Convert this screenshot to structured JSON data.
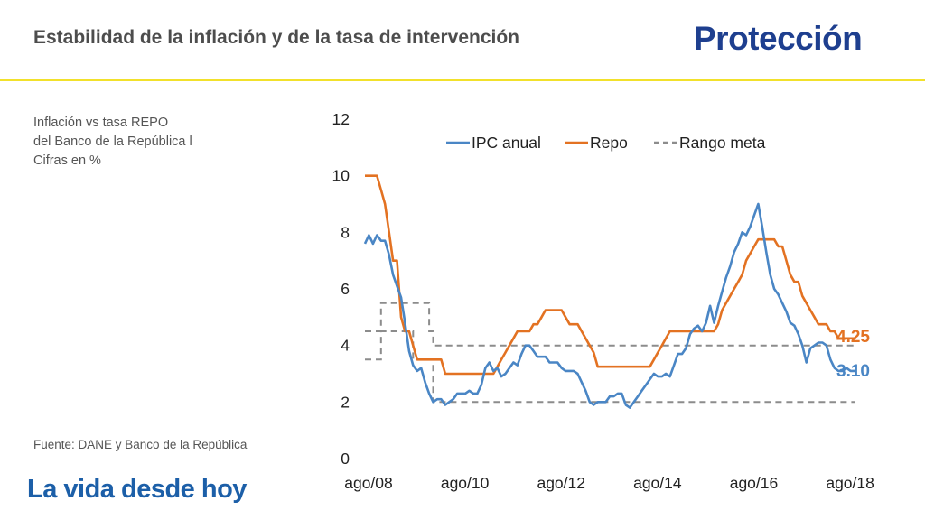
{
  "header": {
    "title": "Estabilidad de la inflación y de la tasa de intervención",
    "logo_text": "Protección"
  },
  "subtitle": "Inflación vs tasa REPO\ndel Banco de la República l\nCifras en %",
  "source": "Fuente: DANE y Banco de la República",
  "tagline": "La vida desde hoy",
  "colors": {
    "ipc": "#4a86c5",
    "repo": "#e37222",
    "rango": "#8c8c8c",
    "accent_yellow": "#f2e12b",
    "brand_blue": "#1e3f8f",
    "tagline_blue": "#1c5fa8"
  },
  "chart_data": {
    "type": "line",
    "x_unit": "months since ago/08",
    "x_ticks": [
      "ago/08",
      "ago/10",
      "ago/12",
      "ago/14",
      "ago/16",
      "ago/18"
    ],
    "ylim": [
      0,
      12
    ],
    "y_ticks": [
      "0",
      "2",
      "4",
      "6",
      "8",
      "10",
      "12"
    ],
    "legend_position": "top",
    "grid": false,
    "series": [
      {
        "name": "IPC anual",
        "style": "solid",
        "points": [
          [
            0,
            7.6
          ],
          [
            1,
            7.9
          ],
          [
            2,
            7.6
          ],
          [
            3,
            7.9
          ],
          [
            4,
            7.7
          ],
          [
            5,
            7.7
          ],
          [
            6,
            7.2
          ],
          [
            7,
            6.5
          ],
          [
            8,
            6.1
          ],
          [
            9,
            5.7
          ],
          [
            10,
            4.8
          ],
          [
            11,
            3.8
          ],
          [
            12,
            3.3
          ],
          [
            13,
            3.1
          ],
          [
            14,
            3.2
          ],
          [
            15,
            2.7
          ],
          [
            16,
            2.3
          ],
          [
            17,
            2.0
          ],
          [
            18,
            2.1
          ],
          [
            19,
            2.1
          ],
          [
            20,
            1.9
          ],
          [
            21,
            2.0
          ],
          [
            22,
            2.1
          ],
          [
            23,
            2.3
          ],
          [
            24,
            2.3
          ],
          [
            25,
            2.3
          ],
          [
            26,
            2.4
          ],
          [
            27,
            2.3
          ],
          [
            28,
            2.3
          ],
          [
            29,
            2.6
          ],
          [
            30,
            3.2
          ],
          [
            31,
            3.4
          ],
          [
            32,
            3.1
          ],
          [
            33,
            3.2
          ],
          [
            34,
            2.9
          ],
          [
            35,
            3.0
          ],
          [
            36,
            3.2
          ],
          [
            37,
            3.4
          ],
          [
            38,
            3.3
          ],
          [
            39,
            3.7
          ],
          [
            40,
            4.0
          ],
          [
            41,
            4.0
          ],
          [
            42,
            3.8
          ],
          [
            43,
            3.6
          ],
          [
            44,
            3.6
          ],
          [
            45,
            3.6
          ],
          [
            46,
            3.4
          ],
          [
            47,
            3.4
          ],
          [
            48,
            3.4
          ],
          [
            49,
            3.2
          ],
          [
            50,
            3.1
          ],
          [
            51,
            3.1
          ],
          [
            52,
            3.1
          ],
          [
            53,
            3.0
          ],
          [
            54,
            2.7
          ],
          [
            55,
            2.4
          ],
          [
            56,
            2.0
          ],
          [
            57,
            1.9
          ],
          [
            58,
            2.0
          ],
          [
            59,
            2.0
          ],
          [
            60,
            2.0
          ],
          [
            61,
            2.2
          ],
          [
            62,
            2.2
          ],
          [
            63,
            2.3
          ],
          [
            64,
            2.3
          ],
          [
            65,
            1.9
          ],
          [
            66,
            1.8
          ],
          [
            67,
            2.0
          ],
          [
            68,
            2.2
          ],
          [
            69,
            2.4
          ],
          [
            70,
            2.6
          ],
          [
            71,
            2.8
          ],
          [
            72,
            3.0
          ],
          [
            73,
            2.9
          ],
          [
            74,
            2.9
          ],
          [
            75,
            3.0
          ],
          [
            76,
            2.9
          ],
          [
            77,
            3.3
          ],
          [
            78,
            3.7
          ],
          [
            79,
            3.7
          ],
          [
            80,
            3.9
          ],
          [
            81,
            4.4
          ],
          [
            82,
            4.6
          ],
          [
            83,
            4.7
          ],
          [
            84,
            4.5
          ],
          [
            85,
            4.8
          ],
          [
            86,
            5.4
          ],
          [
            87,
            4.8
          ],
          [
            88,
            5.4
          ],
          [
            89,
            5.9
          ],
          [
            90,
            6.4
          ],
          [
            91,
            6.8
          ],
          [
            92,
            7.3
          ],
          [
            93,
            7.6
          ],
          [
            94,
            8.0
          ],
          [
            95,
            7.9
          ],
          [
            96,
            8.2
          ],
          [
            97,
            8.6
          ],
          [
            98,
            9.0
          ],
          [
            99,
            8.2
          ],
          [
            100,
            7.3
          ],
          [
            101,
            6.5
          ],
          [
            102,
            6.0
          ],
          [
            103,
            5.8
          ],
          [
            104,
            5.5
          ],
          [
            105,
            5.2
          ],
          [
            106,
            4.8
          ],
          [
            107,
            4.7
          ],
          [
            108,
            4.4
          ],
          [
            109,
            4.0
          ],
          [
            110,
            3.4
          ],
          [
            111,
            3.9
          ],
          [
            112,
            4.0
          ],
          [
            113,
            4.1
          ],
          [
            114,
            4.1
          ],
          [
            115,
            4.0
          ],
          [
            116,
            3.5
          ],
          [
            117,
            3.2
          ],
          [
            118,
            3.1
          ],
          [
            119,
            3.1
          ],
          [
            120,
            3.2
          ],
          [
            121,
            3.1
          ],
          [
            122,
            3.1
          ]
        ]
      },
      {
        "name": "Repo",
        "style": "solid",
        "points": [
          [
            0,
            10.0
          ],
          [
            1,
            10.0
          ],
          [
            2,
            10.0
          ],
          [
            3,
            10.0
          ],
          [
            4,
            9.5
          ],
          [
            5,
            9.0
          ],
          [
            6,
            8.0
          ],
          [
            7,
            7.0
          ],
          [
            8,
            7.0
          ],
          [
            9,
            5.0
          ],
          [
            10,
            4.5
          ],
          [
            11,
            4.5
          ],
          [
            12,
            4.0
          ],
          [
            13,
            3.5
          ],
          [
            14,
            3.5
          ],
          [
            15,
            3.5
          ],
          [
            16,
            3.5
          ],
          [
            17,
            3.5
          ],
          [
            18,
            3.5
          ],
          [
            19,
            3.5
          ],
          [
            20,
            3.0
          ],
          [
            21,
            3.0
          ],
          [
            22,
            3.0
          ],
          [
            23,
            3.0
          ],
          [
            24,
            3.0
          ],
          [
            25,
            3.0
          ],
          [
            26,
            3.0
          ],
          [
            27,
            3.0
          ],
          [
            28,
            3.0
          ],
          [
            29,
            3.0
          ],
          [
            30,
            3.0
          ],
          [
            31,
            3.0
          ],
          [
            32,
            3.0
          ],
          [
            33,
            3.25
          ],
          [
            34,
            3.5
          ],
          [
            35,
            3.75
          ],
          [
            36,
            4.0
          ],
          [
            37,
            4.25
          ],
          [
            38,
            4.5
          ],
          [
            39,
            4.5
          ],
          [
            40,
            4.5
          ],
          [
            41,
            4.5
          ],
          [
            42,
            4.75
          ],
          [
            43,
            4.75
          ],
          [
            44,
            5.0
          ],
          [
            45,
            5.25
          ],
          [
            46,
            5.25
          ],
          [
            47,
            5.25
          ],
          [
            48,
            5.25
          ],
          [
            49,
            5.25
          ],
          [
            50,
            5.0
          ],
          [
            51,
            4.75
          ],
          [
            52,
            4.75
          ],
          [
            53,
            4.75
          ],
          [
            54,
            4.5
          ],
          [
            55,
            4.25
          ],
          [
            56,
            4.0
          ],
          [
            57,
            3.75
          ],
          [
            58,
            3.25
          ],
          [
            59,
            3.25
          ],
          [
            60,
            3.25
          ],
          [
            61,
            3.25
          ],
          [
            62,
            3.25
          ],
          [
            63,
            3.25
          ],
          [
            64,
            3.25
          ],
          [
            65,
            3.25
          ],
          [
            66,
            3.25
          ],
          [
            67,
            3.25
          ],
          [
            68,
            3.25
          ],
          [
            69,
            3.25
          ],
          [
            70,
            3.25
          ],
          [
            71,
            3.25
          ],
          [
            72,
            3.5
          ],
          [
            73,
            3.75
          ],
          [
            74,
            4.0
          ],
          [
            75,
            4.25
          ],
          [
            76,
            4.5
          ],
          [
            77,
            4.5
          ],
          [
            78,
            4.5
          ],
          [
            79,
            4.5
          ],
          [
            80,
            4.5
          ],
          [
            81,
            4.5
          ],
          [
            82,
            4.5
          ],
          [
            83,
            4.5
          ],
          [
            84,
            4.5
          ],
          [
            85,
            4.5
          ],
          [
            86,
            4.5
          ],
          [
            87,
            4.5
          ],
          [
            88,
            4.75
          ],
          [
            89,
            5.25
          ],
          [
            90,
            5.5
          ],
          [
            91,
            5.75
          ],
          [
            92,
            6.0
          ],
          [
            93,
            6.25
          ],
          [
            94,
            6.5
          ],
          [
            95,
            7.0
          ],
          [
            96,
            7.25
          ],
          [
            97,
            7.5
          ],
          [
            98,
            7.75
          ],
          [
            99,
            7.75
          ],
          [
            100,
            7.75
          ],
          [
            101,
            7.75
          ],
          [
            102,
            7.75
          ],
          [
            103,
            7.5
          ],
          [
            104,
            7.5
          ],
          [
            105,
            7.0
          ],
          [
            106,
            6.5
          ],
          [
            107,
            6.25
          ],
          [
            108,
            6.25
          ],
          [
            109,
            5.75
          ],
          [
            110,
            5.5
          ],
          [
            111,
            5.25
          ],
          [
            112,
            5.0
          ],
          [
            113,
            4.75
          ],
          [
            114,
            4.75
          ],
          [
            115,
            4.75
          ],
          [
            116,
            4.5
          ],
          [
            117,
            4.5
          ],
          [
            118,
            4.25
          ],
          [
            119,
            4.25
          ],
          [
            120,
            4.25
          ],
          [
            121,
            4.25
          ],
          [
            122,
            4.25
          ]
        ]
      },
      {
        "name": "Rango meta",
        "style": "dashed",
        "segments": [
          [
            [
              0,
              3.5
            ],
            [
              4,
              3.5
            ],
            [
              4,
              4.5
            ],
            [
              12,
              4.5
            ],
            [
              12,
              3.5
            ],
            [
              17,
              3.5
            ],
            [
              17,
              2.0
            ],
            [
              122,
              2.0
            ]
          ],
          [
            [
              0,
              4.5
            ],
            [
              4,
              4.5
            ],
            [
              4,
              5.5
            ],
            [
              16,
              5.5
            ],
            [
              16,
              4.5
            ],
            [
              17,
              4.5
            ],
            [
              17,
              4.0
            ],
            [
              122,
              4.0
            ]
          ]
        ]
      }
    ],
    "end_labels": [
      {
        "series": "Repo",
        "text": "4.25",
        "value": 4.25
      },
      {
        "series": "IPC anual",
        "text": "3.10",
        "value": 3.1
      }
    ]
  }
}
